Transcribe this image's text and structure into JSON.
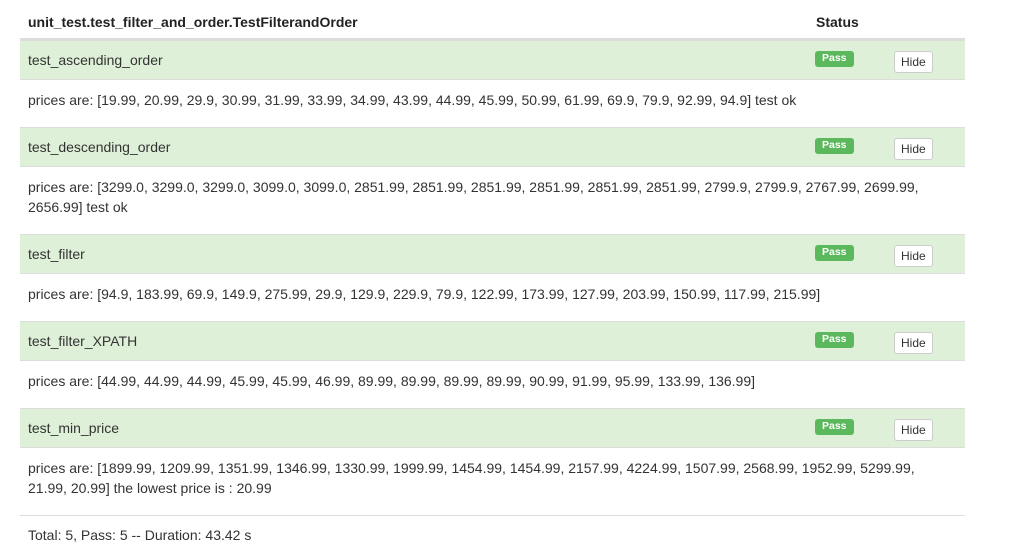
{
  "header": {
    "suite_name": "unit_test.test_filter_and_order.TestFilterandOrder",
    "status_label": "Status"
  },
  "tests": [
    {
      "name": "test_ascending_order",
      "status": "Pass",
      "button": "Hide",
      "detail": "prices are: [19.99, 20.99, 29.9, 30.99, 31.99, 33.99, 34.99, 43.99, 44.99, 45.99, 50.99, 61.99, 69.9, 79.9, 92.99, 94.9] test ok"
    },
    {
      "name": "test_descending_order",
      "status": "Pass",
      "button": "Hide",
      "detail": "prices are: [3299.0, 3299.0, 3299.0, 3099.0, 3099.0, 2851.99, 2851.99, 2851.99, 2851.99, 2851.99, 2851.99, 2799.9, 2799.9, 2767.99, 2699.99, 2656.99] test ok"
    },
    {
      "name": "test_filter",
      "status": "Pass",
      "button": "Hide",
      "detail": "prices are: [94.9, 183.99, 69.9, 149.9, 275.99, 29.9, 129.9, 229.9, 79.9, 122.99, 173.99, 127.99, 203.99, 150.99, 117.99, 215.99]"
    },
    {
      "name": "test_filter_XPATH",
      "status": "Pass",
      "button": "Hide",
      "detail": "prices are: [44.99, 44.99, 44.99, 45.99, 45.99, 46.99, 89.99, 89.99, 89.99, 89.99, 90.99, 91.99, 95.99, 133.99, 136.99]"
    },
    {
      "name": "test_min_price",
      "status": "Pass",
      "button": "Hide",
      "detail": "prices are: [1899.99, 1209.99, 1351.99, 1346.99, 1330.99, 1999.99, 1454.99, 1454.99, 2157.99, 4224.99, 1507.99, 2568.99, 1952.99, 5299.99, 21.99, 20.99] the lowest price is : 20.99"
    }
  ],
  "footer": {
    "summary": "Total: 5, Pass: 5 -- Duration: 43.42 s"
  },
  "colors": {
    "pass_badge": "#5cb85c",
    "row_background": "#dff0d8"
  }
}
